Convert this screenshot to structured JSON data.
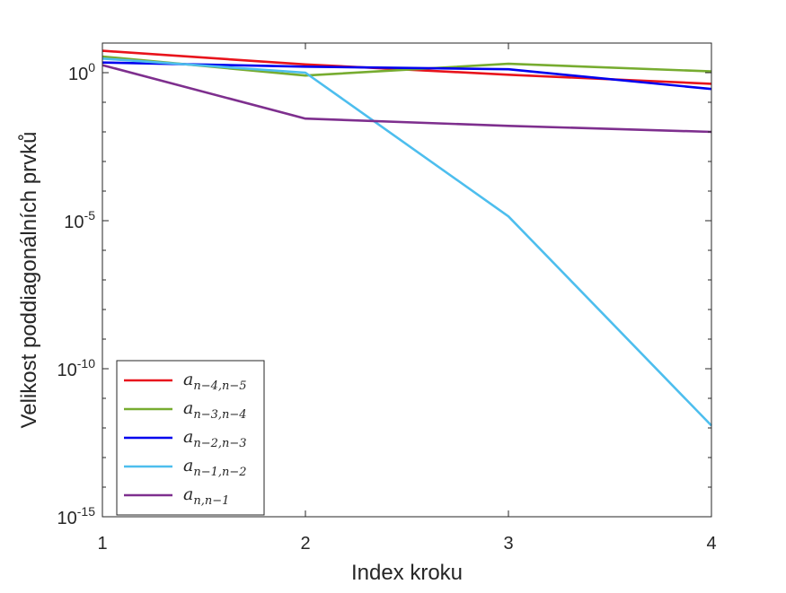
{
  "chart_data": {
    "type": "line",
    "title": "",
    "xlabel": "Index kroku",
    "ylabel": "Velikost poddiagonálních prvků",
    "yscale": "log",
    "xlim": [
      1,
      4
    ],
    "ylim": [
      1e-15,
      10
    ],
    "x_ticks": [
      {
        "value": 1,
        "label": "1"
      },
      {
        "value": 2,
        "label": "2"
      },
      {
        "value": 3,
        "label": "3"
      },
      {
        "value": 4,
        "label": "4"
      }
    ],
    "y_ticks": [
      {
        "exp": 0,
        "base": "10",
        "sup": "0"
      },
      {
        "exp": -5,
        "base": "10",
        "sup": "-5"
      },
      {
        "exp": -10,
        "base": "10",
        "sup": "-10"
      },
      {
        "exp": -15,
        "base": "10",
        "sup": "-15"
      }
    ],
    "grid": false,
    "legend_position": "bottom-left",
    "x": [
      1,
      2,
      3,
      4
    ],
    "series": [
      {
        "name": "a_{n-4,n-5}",
        "sub": "n−4,n−5",
        "color": "#e8141c",
        "values": [
          5.5,
          1.9,
          0.85,
          0.42
        ]
      },
      {
        "name": "a_{n-3,n-4}",
        "sub": "n−3,n−4",
        "color": "#77ac30",
        "values": [
          3.5,
          0.8,
          2.0,
          1.1
        ]
      },
      {
        "name": "a_{n-2,n-3}",
        "sub": "n−2,n−3",
        "color": "#0000ee",
        "values": [
          2.2,
          1.6,
          1.3,
          0.28
        ]
      },
      {
        "name": "a_{n-1,n-2}",
        "sub": "n−1,n−2",
        "color": "#4dbeee",
        "values": [
          3.0,
          1.0,
          1.4e-05,
          1.2e-12
        ]
      },
      {
        "name": "a_{n,n-1}",
        "sub": "n,n−1",
        "color": "#7e2f8e",
        "values": [
          1.8,
          0.028,
          0.016,
          0.01
        ]
      }
    ]
  }
}
